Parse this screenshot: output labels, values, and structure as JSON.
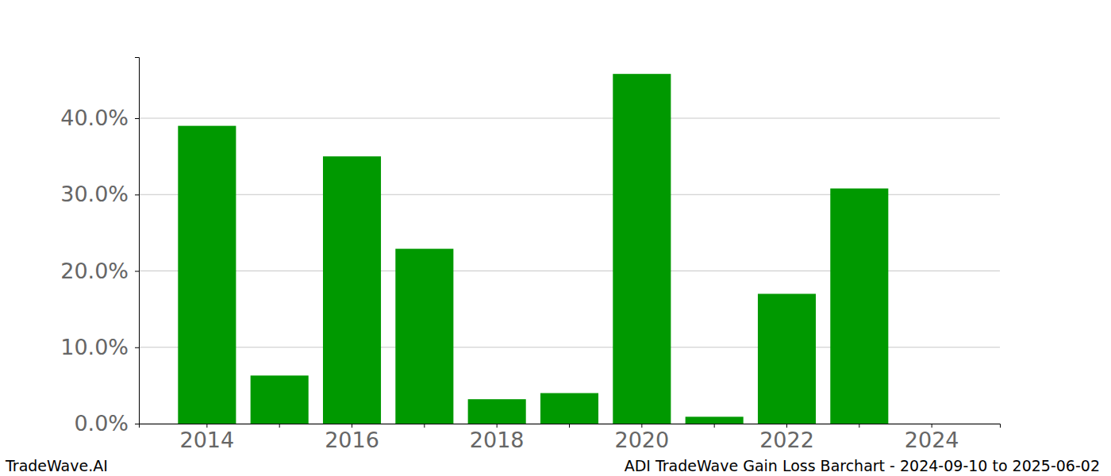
{
  "chart_data": {
    "type": "bar",
    "categories": [
      "2014",
      null,
      "2016",
      null,
      "2018",
      null,
      "2020",
      null,
      "2022",
      null,
      "2024"
    ],
    "values": [
      39.0,
      6.3,
      35.0,
      22.9,
      3.2,
      4.0,
      45.8,
      0.9,
      17.0,
      30.8,
      null
    ],
    "color": "#009900",
    "ylim": [
      0,
      48
    ],
    "yticks": [
      {
        "value": 0,
        "label": "0.0%"
      },
      {
        "value": 10,
        "label": "10.0%"
      },
      {
        "value": 20,
        "label": "20.0%"
      },
      {
        "value": 30,
        "label": "30.0%"
      },
      {
        "value": 40,
        "label": "40.0%"
      }
    ],
    "grid": true,
    "annotations": [
      "TradeWave.AI",
      "ADI TradeWave Gain Loss Barchart - 2024-09-10 to 2025-06-02"
    ]
  }
}
